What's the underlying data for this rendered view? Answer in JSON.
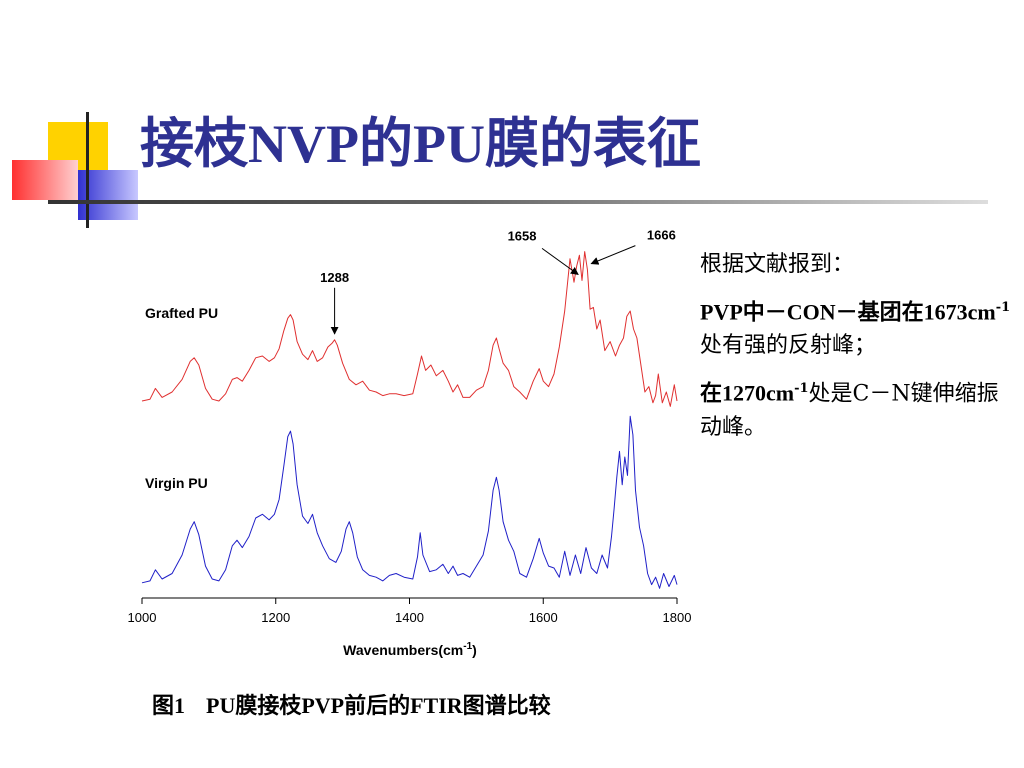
{
  "slide": {
    "title_cn1": "接枝",
    "title_latin1": "NVP",
    "title_cn2": "的",
    "title_latin2": "PU",
    "title_cn3": "膜的表征"
  },
  "notes": {
    "line1": "根据文献报到：",
    "line2a": "PVP中－CON－基团在1673cm",
    "line2sup": "-1",
    "line2b": "处有强的反射峰；",
    "line3a": "在1270cm",
    "line3sup": "-1",
    "line3b": "处是C－N键伸缩振动峰。"
  },
  "caption": {
    "fig": "图1",
    "text": "PU膜接枝PVP前后的FTIR图谱比较"
  },
  "colors": {
    "title": "#2E3192",
    "grafted": "#E03030",
    "virgin": "#2020C8",
    "deco_yellow": "#FFD200",
    "deco_blue": "#2E3192",
    "deco_red": "#FF5A5A"
  },
  "chart_data": {
    "type": "line",
    "xlabel": "Wavenumbers(cm",
    "xlabel_sup": "-1",
    "xlabel_end": ")",
    "xlim": [
      1000,
      1800
    ],
    "xticks": [
      1000,
      1200,
      1400,
      1600,
      1800
    ],
    "ylim": [
      0,
      1
    ],
    "grid": false,
    "series": [
      {
        "name": "Grafted PU",
        "color": "#E03030",
        "x": [
          1000,
          1012,
          1020,
          1030,
          1045,
          1060,
          1072,
          1078,
          1085,
          1095,
          1105,
          1115,
          1125,
          1135,
          1142,
          1150,
          1160,
          1170,
          1180,
          1190,
          1198,
          1205,
          1212,
          1218,
          1222,
          1226,
          1232,
          1240,
          1248,
          1255,
          1262,
          1270,
          1278,
          1284,
          1288,
          1292,
          1300,
          1310,
          1320,
          1330,
          1340,
          1350,
          1360,
          1370,
          1380,
          1392,
          1405,
          1412,
          1418,
          1424,
          1432,
          1440,
          1450,
          1458,
          1465,
          1472,
          1480,
          1490,
          1500,
          1510,
          1518,
          1525,
          1530,
          1534,
          1540,
          1548,
          1556,
          1565,
          1575,
          1585,
          1594,
          1600,
          1608,
          1616,
          1624,
          1632,
          1640,
          1646,
          1650,
          1654,
          1658,
          1662,
          1666,
          1670,
          1675,
          1680,
          1685,
          1692,
          1700,
          1708,
          1714,
          1720,
          1725,
          1730,
          1735,
          1740,
          1746,
          1752,
          1758,
          1764,
          1768,
          1772,
          1778,
          1784,
          1790,
          1796,
          1800
        ],
        "y": [
          0.05,
          0.06,
          0.12,
          0.07,
          0.1,
          0.17,
          0.27,
          0.29,
          0.25,
          0.12,
          0.06,
          0.05,
          0.09,
          0.17,
          0.18,
          0.16,
          0.22,
          0.29,
          0.3,
          0.27,
          0.29,
          0.34,
          0.44,
          0.51,
          0.53,
          0.5,
          0.38,
          0.31,
          0.28,
          0.33,
          0.27,
          0.29,
          0.35,
          0.37,
          0.39,
          0.36,
          0.26,
          0.17,
          0.14,
          0.16,
          0.11,
          0.1,
          0.08,
          0.09,
          0.09,
          0.08,
          0.09,
          0.2,
          0.3,
          0.22,
          0.25,
          0.19,
          0.22,
          0.16,
          0.1,
          0.14,
          0.07,
          0.07,
          0.11,
          0.13,
          0.22,
          0.36,
          0.4,
          0.34,
          0.26,
          0.22,
          0.13,
          0.1,
          0.06,
          0.16,
          0.23,
          0.16,
          0.13,
          0.2,
          0.35,
          0.55,
          0.84,
          0.71,
          0.8,
          0.86,
          0.72,
          0.88,
          0.78,
          0.56,
          0.57,
          0.45,
          0.5,
          0.33,
          0.38,
          0.3,
          0.36,
          0.4,
          0.52,
          0.55,
          0.45,
          0.4,
          0.25,
          0.1,
          0.13,
          0.04,
          0.08,
          0.2,
          0.04,
          0.1,
          0.02,
          0.14,
          0.05
        ]
      },
      {
        "name": "Virgin PU",
        "color": "#2020C8",
        "x": [
          1000,
          1012,
          1020,
          1030,
          1045,
          1060,
          1072,
          1078,
          1085,
          1095,
          1105,
          1115,
          1125,
          1135,
          1142,
          1150,
          1160,
          1170,
          1180,
          1190,
          1198,
          1205,
          1212,
          1218,
          1222,
          1226,
          1232,
          1240,
          1248,
          1255,
          1262,
          1270,
          1280,
          1290,
          1298,
          1305,
          1310,
          1315,
          1322,
          1330,
          1340,
          1350,
          1360,
          1370,
          1380,
          1392,
          1405,
          1412,
          1416,
          1420,
          1430,
          1440,
          1450,
          1458,
          1465,
          1472,
          1480,
          1490,
          1500,
          1510,
          1518,
          1525,
          1530,
          1534,
          1540,
          1548,
          1556,
          1565,
          1575,
          1585,
          1594,
          1600,
          1608,
          1616,
          1624,
          1632,
          1640,
          1648,
          1656,
          1664,
          1672,
          1680,
          1688,
          1696,
          1702,
          1706,
          1710,
          1714,
          1718,
          1722,
          1726,
          1730,
          1734,
          1738,
          1744,
          1750,
          1756,
          1762,
          1768,
          1774,
          1780,
          1788,
          1796,
          1800
        ],
        "y": [
          0.05,
          0.06,
          0.12,
          0.07,
          0.1,
          0.2,
          0.34,
          0.38,
          0.31,
          0.14,
          0.07,
          0.06,
          0.12,
          0.25,
          0.28,
          0.24,
          0.3,
          0.4,
          0.42,
          0.39,
          0.42,
          0.5,
          0.68,
          0.84,
          0.87,
          0.8,
          0.58,
          0.41,
          0.37,
          0.42,
          0.32,
          0.25,
          0.18,
          0.16,
          0.22,
          0.34,
          0.38,
          0.32,
          0.19,
          0.12,
          0.09,
          0.08,
          0.06,
          0.09,
          0.1,
          0.08,
          0.07,
          0.19,
          0.32,
          0.2,
          0.11,
          0.12,
          0.15,
          0.1,
          0.14,
          0.09,
          0.1,
          0.08,
          0.14,
          0.2,
          0.33,
          0.55,
          0.62,
          0.55,
          0.38,
          0.28,
          0.22,
          0.1,
          0.08,
          0.18,
          0.29,
          0.21,
          0.14,
          0.13,
          0.08,
          0.22,
          0.09,
          0.2,
          0.1,
          0.24,
          0.13,
          0.1,
          0.2,
          0.13,
          0.3,
          0.45,
          0.62,
          0.76,
          0.58,
          0.73,
          0.63,
          0.95,
          0.85,
          0.55,
          0.35,
          0.25,
          0.1,
          0.04,
          0.08,
          0.02,
          0.1,
          0.03,
          0.09,
          0.04
        ]
      }
    ],
    "annotations": [
      {
        "text": "1288",
        "x": 1288,
        "series": 0
      },
      {
        "text": "1658",
        "x": 1658,
        "series": 0
      },
      {
        "text": "1666",
        "x": 1666,
        "series": 0
      }
    ]
  }
}
